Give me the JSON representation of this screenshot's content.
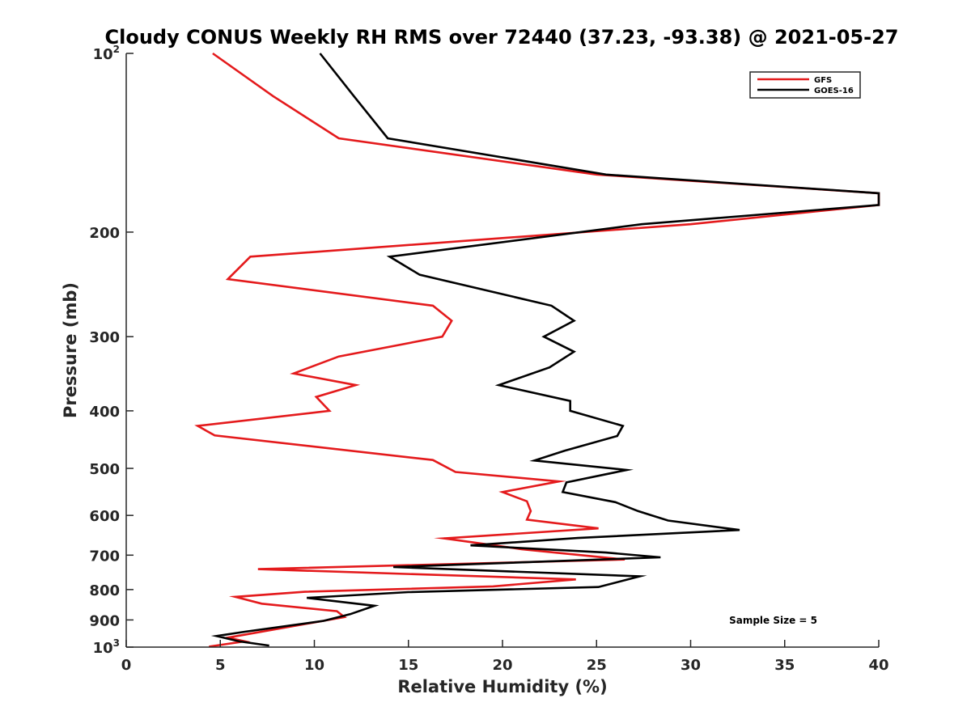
{
  "chart_data": {
    "type": "line",
    "title": "Cloudy CONUS Weekly RH RMS over 72440 (37.23, -93.38) @ 2021-05-27",
    "xlabel": "Relative Humidity (%)",
    "ylabel": "Pressure (mb)",
    "xlim": [
      0,
      40
    ],
    "ylim": [
      100,
      1000
    ],
    "y_scale": "log",
    "y_reversed": true,
    "grid": false,
    "legend_position": "top-right",
    "x_ticks": [
      0,
      5,
      10,
      15,
      20,
      25,
      30,
      35,
      40
    ],
    "y_ticks": [
      {
        "value": 100,
        "label": "10",
        "sup": "2"
      },
      {
        "value": 200,
        "label": "200",
        "sup": ""
      },
      {
        "value": 300,
        "label": "300",
        "sup": ""
      },
      {
        "value": 400,
        "label": "400",
        "sup": ""
      },
      {
        "value": 500,
        "label": "500",
        "sup": ""
      },
      {
        "value": 600,
        "label": "600",
        "sup": ""
      },
      {
        "value": 700,
        "label": "700",
        "sup": ""
      },
      {
        "value": 800,
        "label": "800",
        "sup": ""
      },
      {
        "value": 900,
        "label": "900",
        "sup": ""
      },
      {
        "value": 1000,
        "label": "10",
        "sup": "3"
      }
    ],
    "annotation": "Sample Size = 5",
    "series": [
      {
        "name": "GFS",
        "color": "#e41a1c",
        "points": [
          [
            4.6,
            100
          ],
          [
            7.8,
            118
          ],
          [
            11.3,
            139
          ],
          [
            25.0,
            160
          ],
          [
            40.0,
            172
          ],
          [
            40.0,
            180
          ],
          [
            30.0,
            194
          ],
          [
            6.6,
            220
          ],
          [
            5.4,
            240
          ],
          [
            16.3,
            266
          ],
          [
            17.3,
            282
          ],
          [
            16.8,
            300
          ],
          [
            11.3,
            324
          ],
          [
            8.9,
            346
          ],
          [
            12.2,
            362
          ],
          [
            10.1,
            379
          ],
          [
            10.8,
            400
          ],
          [
            3.8,
            424
          ],
          [
            4.7,
            440
          ],
          [
            16.3,
            484
          ],
          [
            17.5,
            507
          ],
          [
            23.0,
            526
          ],
          [
            20.0,
            548
          ],
          [
            21.3,
            568
          ],
          [
            21.5,
            590
          ],
          [
            21.3,
            610
          ],
          [
            25.1,
            631
          ],
          [
            16.9,
            656
          ],
          [
            21.0,
            684
          ],
          [
            26.5,
            712
          ],
          [
            7.0,
            739
          ],
          [
            23.9,
            769
          ],
          [
            19.5,
            790
          ],
          [
            9.5,
            807
          ],
          [
            5.8,
            823
          ],
          [
            7.2,
            845
          ],
          [
            11.2,
            870
          ],
          [
            11.6,
            890
          ],
          [
            5.4,
            964
          ],
          [
            6.3,
            978
          ],
          [
            4.4,
            998
          ]
        ]
      },
      {
        "name": "GOES-16",
        "color": "#000000",
        "points": [
          [
            10.3,
            100
          ],
          [
            12.1,
            118
          ],
          [
            13.9,
            139
          ],
          [
            25.5,
            160
          ],
          [
            40.0,
            172
          ],
          [
            40.0,
            180
          ],
          [
            27.4,
            194
          ],
          [
            14.0,
            220
          ],
          [
            15.6,
            236
          ],
          [
            22.6,
            266
          ],
          [
            23.8,
            282
          ],
          [
            22.2,
            300
          ],
          [
            23.8,
            318
          ],
          [
            22.5,
            338
          ],
          [
            19.8,
            362
          ],
          [
            23.6,
            385
          ],
          [
            23.6,
            400
          ],
          [
            26.4,
            424
          ],
          [
            26.1,
            441
          ],
          [
            23.3,
            467
          ],
          [
            21.7,
            485
          ],
          [
            26.6,
            503
          ],
          [
            23.4,
            528
          ],
          [
            23.2,
            548
          ],
          [
            26.0,
            570
          ],
          [
            27.2,
            590
          ],
          [
            28.8,
            612
          ],
          [
            32.6,
            635
          ],
          [
            24.0,
            655
          ],
          [
            18.3,
            674
          ],
          [
            25.5,
            693
          ],
          [
            28.4,
            706
          ],
          [
            14.2,
            733
          ],
          [
            27.3,
            760
          ],
          [
            25.1,
            792
          ],
          [
            15.0,
            808
          ],
          [
            9.6,
            826
          ],
          [
            13.2,
            852
          ],
          [
            11.9,
            880
          ],
          [
            10.5,
            903
          ],
          [
            6.3,
            942
          ],
          [
            4.8,
            958
          ],
          [
            6.0,
            978
          ],
          [
            7.6,
            994
          ]
        ]
      }
    ]
  }
}
